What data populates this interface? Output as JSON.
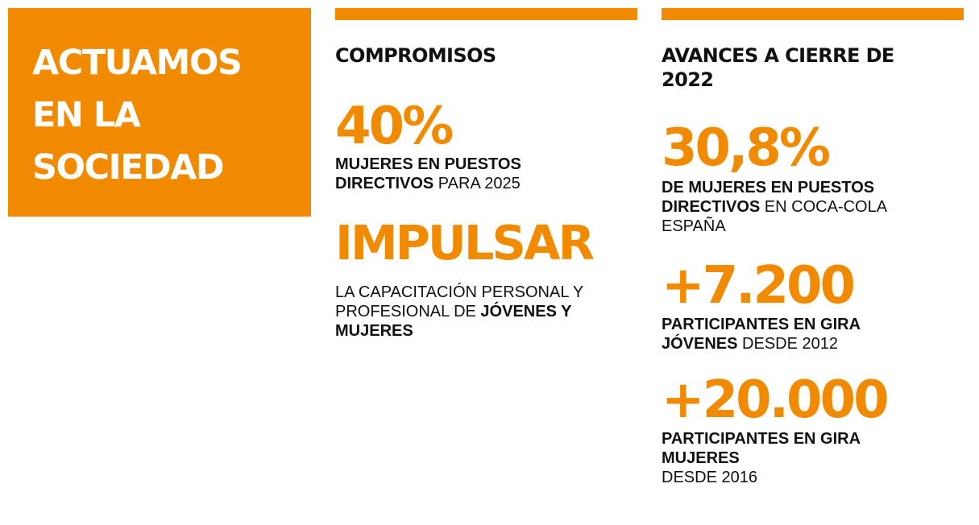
{
  "hero": {
    "lines": [
      "ACTUAMOS",
      "EN LA",
      "SOCIEDAD"
    ]
  },
  "compromisos": {
    "title": "COMPROMISOS",
    "items": [
      {
        "stat": "40%",
        "line1_bold": "MUJERES EN PUESTOS",
        "line2_bold": "DIRECTIVOS",
        "line2_rest": " PARA 2025"
      },
      {
        "stat": "IMPULSAR",
        "line1": "LA CAPACITACIÓN PERSONAL Y",
        "line2_rest": "PROFESIONAL DE ",
        "line2_bold": "JÓVENES Y",
        "line3_bold": "MUJERES"
      }
    ]
  },
  "avances": {
    "title_line1": "AVANCES A CIERRE DE",
    "title_line2": "2022",
    "items": [
      {
        "stat": "30,8%",
        "line1_bold": "DE MUJERES EN PUESTOS",
        "line2_bold": "DIRECTIVOS",
        "line2_rest": " EN COCA-COLA",
        "line3": "ESPAÑA"
      },
      {
        "stat": "+7.200",
        "line1_bold": "PARTICIPANTES EN GIRA",
        "line2_bold": "JÓVENES",
        "line2_rest": " DESDE 2012"
      },
      {
        "stat": "+20.000",
        "line1_bold": "PARTICIPANTES EN GIRA",
        "line2_bold": "MUJERES",
        "line3": "DESDE 2016"
      }
    ]
  },
  "colors": {
    "accent": "#F28A00",
    "text": "#111111",
    "background": "#FFFFFF"
  }
}
